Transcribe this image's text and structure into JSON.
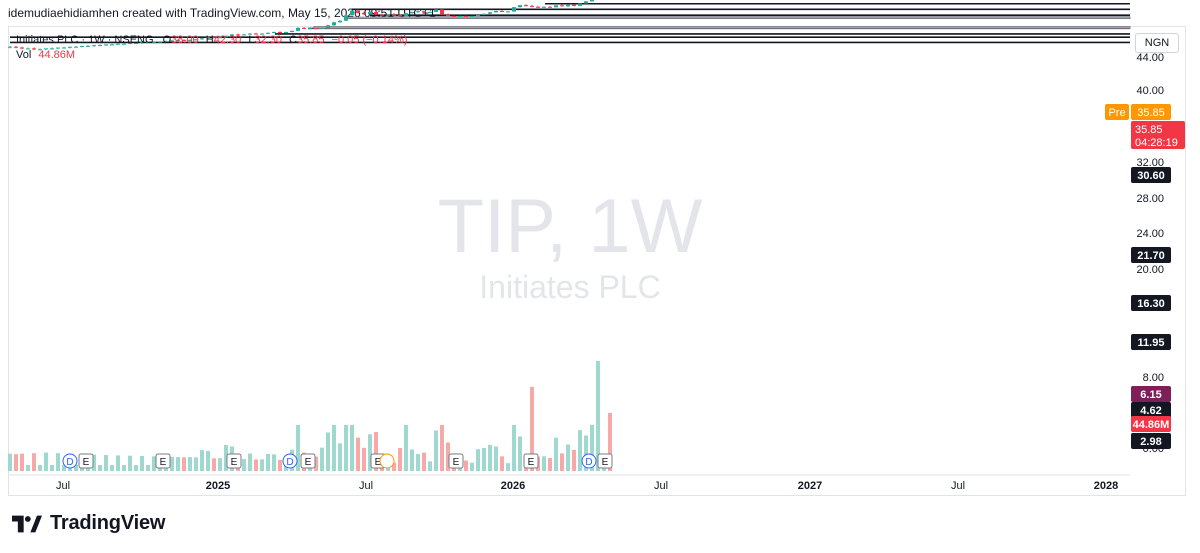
{
  "header": {
    "attribution": "idemudiaehidiamhen created with TradingView.com, May 15, 2026 09:51 UTC+1"
  },
  "legend": {
    "symbol": "Initiates PLC · 1W · NSENG",
    "o_label": "O",
    "o": "38.00",
    "h_label": "H",
    "h": "42.30",
    "l_label": "L",
    "l": "32.30",
    "c_label": "C",
    "c": "35.85",
    "change": "−0.05 (−0.14%)",
    "vol_label": "Vol",
    "vol": "44.86M"
  },
  "currency": "NGN",
  "watermark": {
    "ticker": "TIP, 1W",
    "name": "Initiates PLC"
  },
  "brand": {
    "name": "TradingView"
  },
  "colors": {
    "up": "#22ab94",
    "down": "#f23645",
    "pre": "#ff9800",
    "line": "#131722",
    "purple": "#7e1f5a",
    "volume_up": "#9fd8cf",
    "volume_down": "#f7a9a7"
  },
  "chart_data": {
    "type": "candlestick",
    "timeframe": "1W",
    "x_tick_labels": [
      "Jul",
      "2025",
      "Jul",
      "2026",
      "Jul",
      "2027",
      "Jul",
      "2028"
    ],
    "y_tick_labels": [
      "44.00",
      "40.00",
      "32.00",
      "28.00",
      "24.00",
      "20.00",
      "8.00",
      "0.00"
    ],
    "price_axis_labels": [
      {
        "text": "Pre",
        "value": "35.85",
        "kind": "pre"
      },
      {
        "text": "35.85",
        "sub": "04:28:19",
        "kind": "last"
      },
      {
        "text": "30.60",
        "kind": "level"
      },
      {
        "text": "21.70",
        "kind": "level"
      },
      {
        "text": "16.30",
        "kind": "level"
      },
      {
        "text": "11.95",
        "kind": "level"
      },
      {
        "text": "6.15",
        "kind": "level-purple"
      },
      {
        "text": "4.62",
        "kind": "level"
      },
      {
        "text": "44.86M",
        "kind": "volume"
      },
      {
        "text": "2.98",
        "kind": "level"
      }
    ],
    "horizontal_levels": [
      30.6,
      21.7,
      16.3,
      11.95,
      6.15,
      4.62,
      2.98
    ],
    "last_close": 35.85,
    "last_volume": "44.86M",
    "earnings_markers": [
      "E",
      "E",
      "E",
      "E",
      "E",
      "E",
      "E",
      "E",
      "E"
    ],
    "dividend_markers": [
      "D",
      "D",
      "D"
    ],
    "candles": [
      {
        "o": 2.3,
        "h": 2.5,
        "l": 2.2,
        "c": 2.4
      },
      {
        "o": 2.4,
        "h": 2.5,
        "l": 2.2,
        "c": 2.3
      },
      {
        "o": 2.3,
        "h": 2.4,
        "l": 2.1,
        "c": 2.2
      },
      {
        "o": 2.2,
        "h": 2.3,
        "l": 2.1,
        "c": 2.2
      },
      {
        "o": 2.2,
        "h": 2.3,
        "l": 2.0,
        "c": 2.1
      },
      {
        "o": 2.1,
        "h": 2.2,
        "l": 2.0,
        "c": 2.1
      },
      {
        "o": 2.1,
        "h": 2.2,
        "l": 2.0,
        "c": 2.2
      },
      {
        "o": 2.2,
        "h": 2.3,
        "l": 2.1,
        "c": 2.2
      },
      {
        "o": 2.2,
        "h": 2.3,
        "l": 2.1,
        "c": 2.3
      },
      {
        "o": 2.3,
        "h": 2.4,
        "l": 2.2,
        "c": 2.3
      },
      {
        "o": 2.3,
        "h": 2.4,
        "l": 2.2,
        "c": 2.4
      },
      {
        "o": 2.4,
        "h": 2.5,
        "l": 2.3,
        "c": 2.4
      },
      {
        "o": 2.4,
        "h": 2.5,
        "l": 2.3,
        "c": 2.5
      },
      {
        "o": 2.5,
        "h": 2.6,
        "l": 2.4,
        "c": 2.5
      },
      {
        "o": 2.5,
        "h": 2.6,
        "l": 2.4,
        "c": 2.6
      },
      {
        "o": 2.6,
        "h": 2.7,
        "l": 2.5,
        "c": 2.6
      },
      {
        "o": 2.6,
        "h": 2.7,
        "l": 2.5,
        "c": 2.7
      },
      {
        "o": 2.7,
        "h": 2.8,
        "l": 2.6,
        "c": 2.7
      },
      {
        "o": 2.7,
        "h": 2.8,
        "l": 2.6,
        "c": 2.8
      },
      {
        "o": 2.8,
        "h": 2.9,
        "l": 2.7,
        "c": 2.8
      },
      {
        "o": 2.8,
        "h": 2.9,
        "l": 2.7,
        "c": 2.9
      },
      {
        "o": 2.9,
        "h": 3.0,
        "l": 2.8,
        "c": 2.9
      },
      {
        "o": 2.9,
        "h": 3.0,
        "l": 2.8,
        "c": 3.0
      },
      {
        "o": 3.0,
        "h": 3.1,
        "l": 2.9,
        "c": 3.0
      },
      {
        "o": 3.0,
        "h": 3.1,
        "l": 2.9,
        "c": 3.1
      },
      {
        "o": 3.1,
        "h": 3.2,
        "l": 3.0,
        "c": 3.1
      },
      {
        "o": 3.1,
        "h": 3.3,
        "l": 3.0,
        "c": 3.2
      },
      {
        "o": 3.2,
        "h": 3.4,
        "l": 3.1,
        "c": 3.3
      },
      {
        "o": 3.3,
        "h": 3.5,
        "l": 3.2,
        "c": 3.4
      },
      {
        "o": 3.4,
        "h": 3.5,
        "l": 3.2,
        "c": 3.3
      },
      {
        "o": 3.3,
        "h": 3.5,
        "l": 3.2,
        "c": 3.4
      },
      {
        "o": 3.4,
        "h": 3.6,
        "l": 3.3,
        "c": 3.5
      },
      {
        "o": 3.5,
        "h": 3.8,
        "l": 3.4,
        "c": 3.7
      },
      {
        "o": 3.7,
        "h": 4.0,
        "l": 3.6,
        "c": 3.9
      },
      {
        "o": 3.9,
        "h": 4.1,
        "l": 3.7,
        "c": 3.8
      },
      {
        "o": 3.8,
        "h": 4.0,
        "l": 3.7,
        "c": 3.9
      },
      {
        "o": 3.9,
        "h": 4.3,
        "l": 3.8,
        "c": 4.2
      },
      {
        "o": 4.2,
        "h": 4.6,
        "l": 4.1,
        "c": 4.5
      },
      {
        "o": 4.5,
        "h": 4.7,
        "l": 4.3,
        "c": 4.4
      },
      {
        "o": 4.4,
        "h": 4.6,
        "l": 4.3,
        "c": 4.5
      },
      {
        "o": 4.5,
        "h": 4.8,
        "l": 4.4,
        "c": 4.7
      },
      {
        "o": 4.7,
        "h": 4.9,
        "l": 4.5,
        "c": 4.6
      },
      {
        "o": 4.6,
        "h": 4.8,
        "l": 4.5,
        "c": 4.7
      },
      {
        "o": 4.7,
        "h": 5.0,
        "l": 4.6,
        "c": 4.9
      },
      {
        "o": 4.9,
        "h": 5.2,
        "l": 4.8,
        "c": 5.1
      },
      {
        "o": 5.1,
        "h": 5.3,
        "l": 4.9,
        "c": 5.0
      },
      {
        "o": 5.0,
        "h": 5.2,
        "l": 4.9,
        "c": 5.1
      },
      {
        "o": 5.1,
        "h": 5.5,
        "l": 5.0,
        "c": 5.4
      },
      {
        "o": 5.4,
        "h": 6.5,
        "l": 5.3,
        "c": 6.3
      },
      {
        "o": 6.3,
        "h": 6.6,
        "l": 5.9,
        "c": 6.0
      },
      {
        "o": 6.0,
        "h": 6.3,
        "l": 5.8,
        "c": 6.2
      },
      {
        "o": 6.2,
        "h": 6.4,
        "l": 5.9,
        "c": 6.0
      },
      {
        "o": 6.0,
        "h": 6.5,
        "l": 5.9,
        "c": 6.4
      },
      {
        "o": 6.4,
        "h": 7.4,
        "l": 6.3,
        "c": 7.2
      },
      {
        "o": 7.2,
        "h": 8.6,
        "l": 7.0,
        "c": 8.4
      },
      {
        "o": 8.4,
        "h": 9.3,
        "l": 8.2,
        "c": 9.1
      },
      {
        "o": 9.1,
        "h": 12.2,
        "l": 9.0,
        "c": 12.0
      },
      {
        "o": 12.0,
        "h": 15.8,
        "l": 11.8,
        "c": 15.2
      },
      {
        "o": 15.2,
        "h": 16.2,
        "l": 13.2,
        "c": 13.6
      },
      {
        "o": 13.6,
        "h": 14.5,
        "l": 12.2,
        "c": 12.7
      },
      {
        "o": 12.7,
        "h": 15.0,
        "l": 12.5,
        "c": 14.2
      },
      {
        "o": 14.2,
        "h": 14.6,
        "l": 12.0,
        "c": 12.4
      },
      {
        "o": 12.4,
        "h": 13.0,
        "l": 12.0,
        "c": 12.2
      },
      {
        "o": 12.2,
        "h": 12.6,
        "l": 11.8,
        "c": 12.3
      },
      {
        "o": 12.3,
        "h": 13.5,
        "l": 12.0,
        "c": 12.2
      },
      {
        "o": 12.2,
        "h": 12.6,
        "l": 11.0,
        "c": 11.4
      },
      {
        "o": 11.4,
        "h": 13.8,
        "l": 11.3,
        "c": 13.4
      },
      {
        "o": 13.4,
        "h": 14.6,
        "l": 13.0,
        "c": 14.2
      },
      {
        "o": 14.2,
        "h": 15.4,
        "l": 13.6,
        "c": 14.8
      },
      {
        "o": 14.8,
        "h": 15.2,
        "l": 13.8,
        "c": 14.1
      },
      {
        "o": 14.1,
        "h": 14.6,
        "l": 13.4,
        "c": 14.3
      },
      {
        "o": 14.3,
        "h": 16.4,
        "l": 14.1,
        "c": 16.2
      },
      {
        "o": 16.2,
        "h": 16.4,
        "l": 12.3,
        "c": 12.7
      },
      {
        "o": 12.7,
        "h": 13.2,
        "l": 11.3,
        "c": 11.6
      },
      {
        "o": 11.6,
        "h": 11.9,
        "l": 10.9,
        "c": 11.2
      },
      {
        "o": 11.2,
        "h": 11.8,
        "l": 10.9,
        "c": 11.6
      },
      {
        "o": 11.6,
        "h": 11.8,
        "l": 11.2,
        "c": 11.4
      },
      {
        "o": 11.4,
        "h": 11.8,
        "l": 11.1,
        "c": 11.5
      },
      {
        "o": 11.5,
        "h": 12.4,
        "l": 11.3,
        "c": 12.2
      },
      {
        "o": 12.2,
        "h": 13.2,
        "l": 12.0,
        "c": 13.0
      },
      {
        "o": 13.0,
        "h": 14.2,
        "l": 12.8,
        "c": 14.0
      },
      {
        "o": 14.0,
        "h": 15.2,
        "l": 13.8,
        "c": 15.0
      },
      {
        "o": 15.0,
        "h": 15.6,
        "l": 14.2,
        "c": 14.5
      },
      {
        "o": 14.5,
        "h": 15.0,
        "l": 14.0,
        "c": 14.6
      },
      {
        "o": 14.6,
        "h": 18.4,
        "l": 14.4,
        "c": 18.2
      },
      {
        "o": 18.2,
        "h": 20.5,
        "l": 18.0,
        "c": 20.2
      },
      {
        "o": 20.2,
        "h": 21.1,
        "l": 19.0,
        "c": 19.5
      },
      {
        "o": 19.5,
        "h": 20.3,
        "l": 18.2,
        "c": 18.6
      },
      {
        "o": 18.6,
        "h": 19.4,
        "l": 17.8,
        "c": 18.0
      },
      {
        "o": 18.0,
        "h": 19.0,
        "l": 17.6,
        "c": 18.6
      },
      {
        "o": 18.6,
        "h": 19.2,
        "l": 17.9,
        "c": 18.1
      },
      {
        "o": 18.1,
        "h": 20.2,
        "l": 18.0,
        "c": 20.0
      },
      {
        "o": 20.0,
        "h": 20.9,
        "l": 18.8,
        "c": 19.1
      },
      {
        "o": 19.1,
        "h": 21.0,
        "l": 18.4,
        "c": 20.6
      },
      {
        "o": 20.6,
        "h": 21.2,
        "l": 19.1,
        "c": 19.4
      },
      {
        "o": 19.4,
        "h": 22.3,
        "l": 19.2,
        "c": 22.0
      },
      {
        "o": 22.0,
        "h": 25.0,
        "l": 21.8,
        "c": 24.5
      },
      {
        "o": 24.5,
        "h": 31.0,
        "l": 24.3,
        "c": 30.6
      },
      {
        "o": 30.6,
        "h": 37.5,
        "l": 30.2,
        "c": 37.2
      },
      {
        "o": 37.2,
        "h": 38.6,
        "l": 34.0,
        "c": 38.0
      },
      {
        "o": 38.0,
        "h": 42.3,
        "l": 32.3,
        "c": 35.85
      }
    ]
  }
}
